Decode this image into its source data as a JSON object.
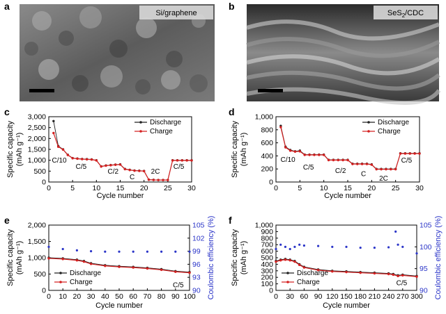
{
  "panels": {
    "a": {
      "letter": "a",
      "label": "Si/graphene"
    },
    "b": {
      "letter": "b",
      "label": "SeS",
      "label_sub": "2",
      "label_tail": "/CDC"
    }
  },
  "colors": {
    "discharge": "#222222",
    "charge": "#d42020",
    "efficiency": "#2b35c8"
  },
  "chart_data": [
    {
      "id": "c",
      "letter": "c",
      "type": "line",
      "ylabel": "Specific capacity",
      "ylabel_unit": "(mAh g⁻¹)",
      "xlabel": "Cycle number",
      "xlim": [
        0,
        30
      ],
      "ylim": [
        0,
        3000
      ],
      "xticks": [
        0,
        5,
        10,
        15,
        20,
        25,
        30
      ],
      "yticks": [
        0,
        500,
        1000,
        1500,
        2000,
        2500,
        3000
      ],
      "ytick_labels": [
        "0",
        "500",
        "1,000",
        "1,500",
        "2,000",
        "2,500",
        "3,000"
      ],
      "series": [
        {
          "name": "Discharge",
          "x": [
            1,
            2,
            3,
            4,
            5,
            6,
            7,
            8,
            9,
            10,
            11,
            12,
            13,
            14,
            15,
            16,
            17,
            18,
            19,
            20,
            21,
            22,
            23,
            24,
            25,
            26,
            27,
            28,
            29,
            30
          ],
          "values": [
            2800,
            1650,
            1500,
            1250,
            1100,
            1080,
            1060,
            1050,
            1040,
            1000,
            720,
            760,
            780,
            800,
            810,
            600,
            560,
            530,
            520,
            510,
            110,
            100,
            95,
            95,
            95,
            1000,
            1000,
            1000,
            1000,
            1000
          ]
        },
        {
          "name": "Charge",
          "x": [
            1,
            2,
            3,
            4,
            5,
            6,
            7,
            8,
            9,
            10,
            11,
            12,
            13,
            14,
            15,
            16,
            17,
            18,
            19,
            20,
            21,
            22,
            23,
            24,
            25,
            26,
            27,
            28,
            29,
            30
          ],
          "values": [
            2250,
            1620,
            1490,
            1240,
            1090,
            1070,
            1050,
            1040,
            1030,
            990,
            710,
            750,
            770,
            790,
            800,
            590,
            550,
            520,
            510,
            500,
            105,
            95,
            90,
            90,
            90,
            990,
            990,
            990,
            990,
            990
          ]
        }
      ],
      "annotations": [
        {
          "text": "C/10",
          "x": 2.2,
          "y": 900
        },
        {
          "text": "C/5",
          "x": 6.8,
          "y": 600
        },
        {
          "text": "C/2",
          "x": 13.5,
          "y": 380
        },
        {
          "text": "C",
          "x": 17.5,
          "y": 120
        },
        {
          "text": "2C",
          "x": 22.4,
          "y": 380
        },
        {
          "text": "C/5",
          "x": 27.3,
          "y": 600
        }
      ],
      "legend": "top-right"
    },
    {
      "id": "d",
      "letter": "d",
      "type": "line",
      "ylabel": "Specific capacity",
      "ylabel_unit": "(mAh g⁻¹)",
      "xlabel": "Cycle number",
      "xlim": [
        0,
        30
      ],
      "ylim": [
        0,
        1000
      ],
      "xticks": [
        0,
        5,
        10,
        15,
        20,
        25,
        30
      ],
      "yticks": [
        0,
        200,
        400,
        600,
        800,
        1000
      ],
      "ytick_labels": [
        "0",
        "200",
        "400",
        "600",
        "800",
        "1,000"
      ],
      "series": [
        {
          "name": "Discharge",
          "x": [
            1,
            2,
            3,
            4,
            5,
            6,
            7,
            8,
            9,
            10,
            11,
            12,
            13,
            14,
            15,
            16,
            17,
            18,
            19,
            20,
            21,
            22,
            23,
            24,
            25,
            26,
            27,
            28,
            29,
            30
          ],
          "values": [
            860,
            540,
            490,
            470,
            480,
            420,
            420,
            420,
            420,
            420,
            340,
            340,
            340,
            340,
            340,
            280,
            280,
            280,
            280,
            270,
            200,
            200,
            200,
            200,
            200,
            440,
            440,
            440,
            440,
            440
          ]
        },
        {
          "name": "Charge",
          "x": [
            1,
            2,
            3,
            4,
            5,
            6,
            7,
            8,
            9,
            10,
            11,
            12,
            13,
            14,
            15,
            16,
            17,
            18,
            19,
            20,
            21,
            22,
            23,
            24,
            25,
            26,
            27,
            28,
            29,
            30
          ],
          "values": [
            840,
            530,
            480,
            465,
            470,
            415,
            415,
            415,
            415,
            415,
            335,
            335,
            335,
            335,
            335,
            275,
            275,
            275,
            275,
            265,
            195,
            195,
            195,
            195,
            195,
            435,
            435,
            435,
            435,
            435
          ]
        }
      ],
      "annotations": [
        {
          "text": "C/10",
          "x": 2.5,
          "y": 310
        },
        {
          "text": "C/5",
          "x": 6.8,
          "y": 190
        },
        {
          "text": "C/2",
          "x": 13.5,
          "y": 140
        },
        {
          "text": "C",
          "x": 18.3,
          "y": 90
        },
        {
          "text": "2C",
          "x": 22.5,
          "y": 20
        },
        {
          "text": "C/5",
          "x": 27.3,
          "y": 300
        }
      ],
      "legend": "top-right"
    },
    {
      "id": "e",
      "letter": "e",
      "type": "line",
      "ylabel": "Specific capacity",
      "ylabel_unit": "(mAh g⁻¹)",
      "ylabel2": "Coulombic efficiency (%)",
      "xlabel": "Cycle number",
      "xlim": [
        0,
        100
      ],
      "ylim": [
        0,
        2000
      ],
      "y2lim": [
        90,
        105
      ],
      "xticks": [
        0,
        10,
        20,
        30,
        40,
        50,
        60,
        70,
        80,
        90,
        100
      ],
      "yticks": [
        0,
        500,
        1000,
        1500,
        2000
      ],
      "ytick_labels": [
        "0",
        "500",
        "1,000",
        "1,500",
        "2,000"
      ],
      "y2ticks": [
        90,
        93,
        96,
        99,
        102,
        105
      ],
      "series": [
        {
          "name": "Discharge",
          "axis": "left",
          "x": [
            0,
            10,
            20,
            25,
            30,
            40,
            50,
            60,
            70,
            80,
            90,
            100
          ],
          "values": [
            1000,
            980,
            940,
            900,
            830,
            770,
            740,
            720,
            690,
            650,
            590,
            560
          ]
        },
        {
          "name": "Charge",
          "axis": "left",
          "x": [
            0,
            10,
            20,
            25,
            30,
            40,
            50,
            60,
            70,
            80,
            90,
            100
          ],
          "values": [
            980,
            960,
            920,
            880,
            810,
            750,
            720,
            700,
            670,
            630,
            570,
            540
          ]
        },
        {
          "name": "Coulombic efficiency",
          "axis": "right",
          "x": [
            0,
            10,
            20,
            30,
            40,
            50,
            60,
            70,
            80,
            90,
            100
          ],
          "values": [
            100.0,
            99.5,
            99.2,
            99.0,
            98.9,
            98.9,
            98.9,
            98.9,
            98.9,
            98.9,
            98.9
          ]
        }
      ],
      "annotations": [
        {
          "text": "C/5",
          "x": 92,
          "y": 100
        }
      ],
      "legend": "bottom-left"
    },
    {
      "id": "f",
      "letter": "f",
      "type": "line",
      "ylabel": "Specific capacity",
      "ylabel_unit": "(mAh g⁻¹)",
      "ylabel2": "Coulombic efficiency (%)",
      "xlabel": "Cycle number",
      "xlim": [
        0,
        300
      ],
      "ylim": [
        0,
        1000
      ],
      "y2lim": [
        90,
        105
      ],
      "xticks": [
        0,
        30,
        60,
        90,
        120,
        150,
        180,
        210,
        240,
        270,
        300
      ],
      "yticks": [
        0,
        100,
        200,
        300,
        400,
        500,
        600,
        700,
        800,
        900,
        1000
      ],
      "ytick_labels": [
        "0",
        "100",
        "200",
        "300",
        "400",
        "500",
        "600",
        "700",
        "800",
        "900",
        "1,000"
      ],
      "y2ticks": [
        90,
        95,
        100,
        105
      ],
      "series": [
        {
          "name": "Discharge",
          "axis": "left",
          "x": [
            0,
            10,
            20,
            30,
            40,
            50,
            60,
            90,
            120,
            150,
            180,
            210,
            240,
            250,
            260,
            270,
            300
          ],
          "values": [
            450,
            470,
            480,
            470,
            450,
            400,
            360,
            320,
            300,
            290,
            280,
            270,
            260,
            250,
            230,
            240,
            220
          ]
        },
        {
          "name": "Charge",
          "axis": "left",
          "x": [
            0,
            10,
            20,
            30,
            40,
            50,
            60,
            90,
            120,
            150,
            180,
            210,
            240,
            250,
            260,
            270,
            300
          ],
          "values": [
            440,
            460,
            470,
            460,
            440,
            390,
            350,
            310,
            290,
            280,
            270,
            260,
            250,
            240,
            220,
            230,
            210
          ]
        },
        {
          "name": "Coulombic efficiency",
          "axis": "right",
          "x": [
            0,
            10,
            20,
            30,
            40,
            50,
            60,
            90,
            120,
            150,
            180,
            210,
            240,
            255,
            260,
            270,
            300
          ],
          "values": [
            99.5,
            100.5,
            100.0,
            99.5,
            100.0,
            100.5,
            100.3,
            100.2,
            100.0,
            100.0,
            99.8,
            99.8,
            99.9,
            103.5,
            100.5,
            100.0,
            98.5
          ]
        }
      ],
      "annotations": [
        {
          "text": "C/5",
          "x": 268,
          "y": 80
        }
      ],
      "legend": "bottom-left"
    }
  ]
}
